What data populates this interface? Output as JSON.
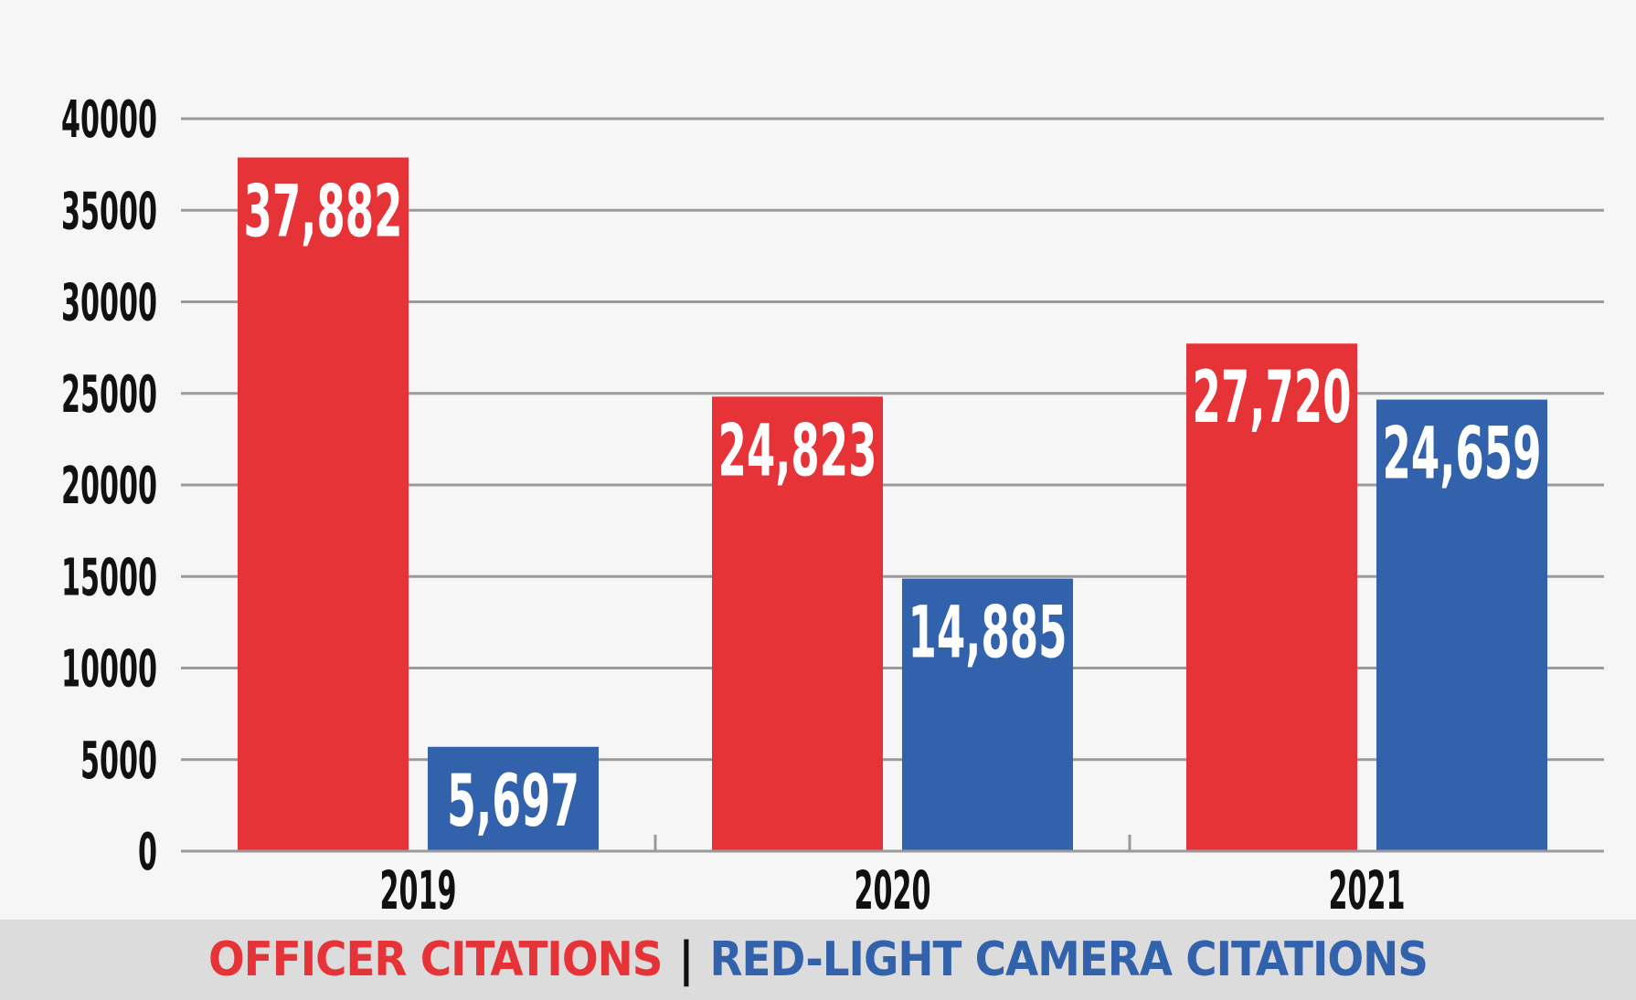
{
  "chart_data": {
    "type": "bar",
    "title": "",
    "xlabel": "",
    "ylabel": "",
    "categories": [
      "2019",
      "2020",
      "2021"
    ],
    "series": [
      {
        "name": "OFFICER CITATIONS",
        "values": [
          37882,
          24823,
          27720
        ],
        "labels": [
          "37,882",
          "24,823",
          "27,720"
        ],
        "color": "#e63338"
      },
      {
        "name": "RED-LIGHT CAMERA CITATIONS",
        "values": [
          5697,
          14885,
          24659
        ],
        "labels": [
          "5,697",
          "14,885",
          "24,659"
        ],
        "color": "#3362ad"
      }
    ],
    "ylim": [
      0,
      40000
    ],
    "yticks": [
      0,
      5000,
      10000,
      15000,
      20000,
      25000,
      30000,
      35000,
      40000
    ],
    "grid": true,
    "legend_position": "bottom",
    "legend_separator": "|"
  },
  "colors": {
    "background": "#f6f6f6",
    "grid": "#9a9a9a",
    "legend_band": "#dcdcdc",
    "text": "#111111"
  }
}
